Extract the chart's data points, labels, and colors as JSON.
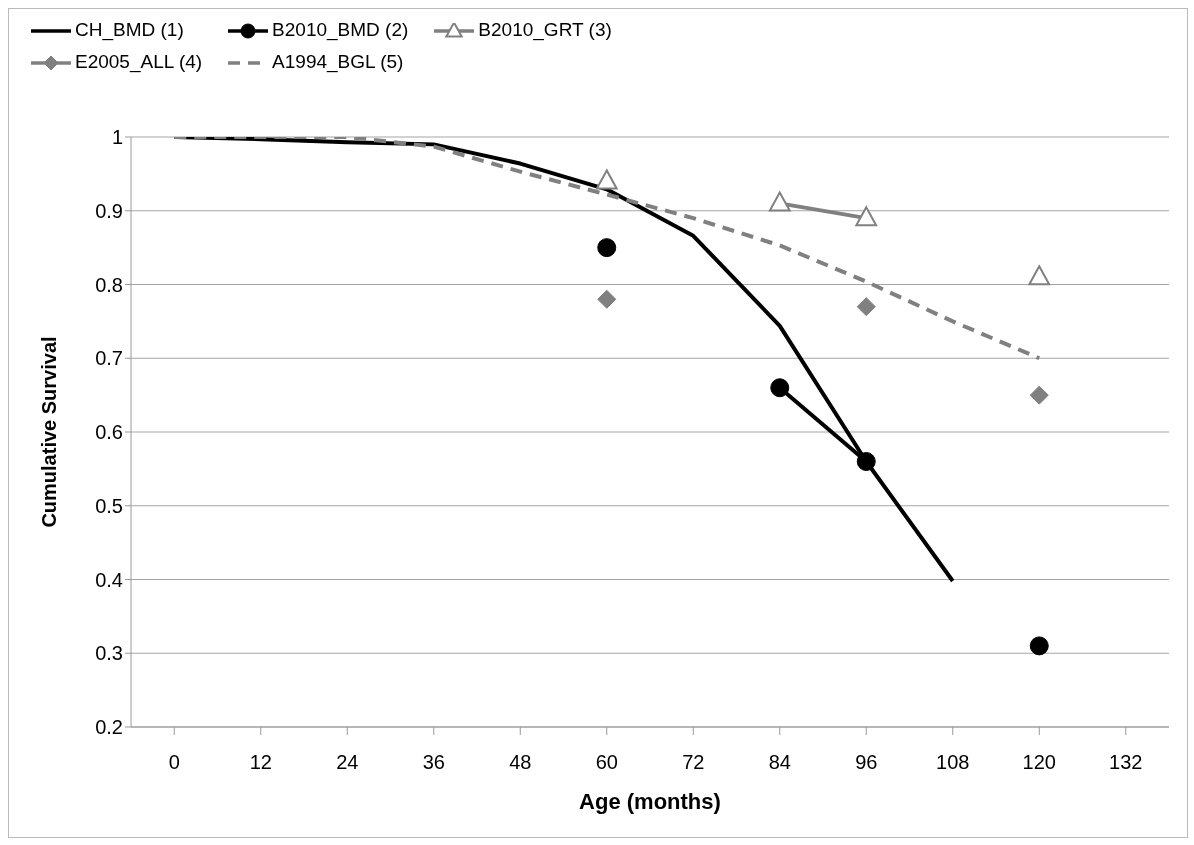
{
  "chart_data": {
    "type": "line",
    "xlabel": "Age (months)",
    "ylabel": "Cumulative Survival",
    "categories": [
      "0",
      "12",
      "24",
      "36",
      "48",
      "60",
      "72",
      "84",
      "96",
      "108",
      "120",
      "132"
    ],
    "ylim": [
      0.2,
      1
    ],
    "yticks": [
      0.2,
      0.3,
      0.4,
      0.5,
      0.6,
      0.7,
      0.8,
      0.9,
      1
    ],
    "grid": "y",
    "legend": "top",
    "series": [
      {
        "name": "CH_BMD (1)",
        "color": "#000000",
        "marker": "none",
        "line_style": "solid",
        "values": [
          1.0,
          0.997,
          0.993,
          0.99,
          0.964,
          0.929,
          0.866,
          0.744,
          0.56,
          0.398,
          null,
          null
        ]
      },
      {
        "name": "B2010_BMD (2)",
        "color": "#000000",
        "marker": "circle",
        "line_style": "solid",
        "values": [
          null,
          null,
          null,
          null,
          null,
          0.85,
          null,
          0.66,
          0.56,
          null,
          0.31,
          null
        ]
      },
      {
        "name": "B2010_GRT (3)",
        "color": "#808080",
        "marker": "triangle",
        "line_style": "solid",
        "values": [
          null,
          null,
          null,
          null,
          null,
          0.94,
          null,
          0.91,
          0.89,
          null,
          0.81,
          null
        ]
      },
      {
        "name": "E2005_ALL (4)",
        "color": "#808080",
        "marker": "diamond",
        "line_style": "solid",
        "values": [
          null,
          null,
          null,
          null,
          null,
          0.78,
          null,
          null,
          0.77,
          null,
          0.65,
          null
        ]
      },
      {
        "name": "A1994_BGL (5)",
        "color": "#808080",
        "marker": "none",
        "line_style": "dashed",
        "values": [
          1.0,
          1.0,
          1.0,
          0.987,
          0.953,
          0.922,
          0.89,
          0.853,
          0.804,
          0.75,
          0.7,
          null
        ]
      }
    ]
  }
}
